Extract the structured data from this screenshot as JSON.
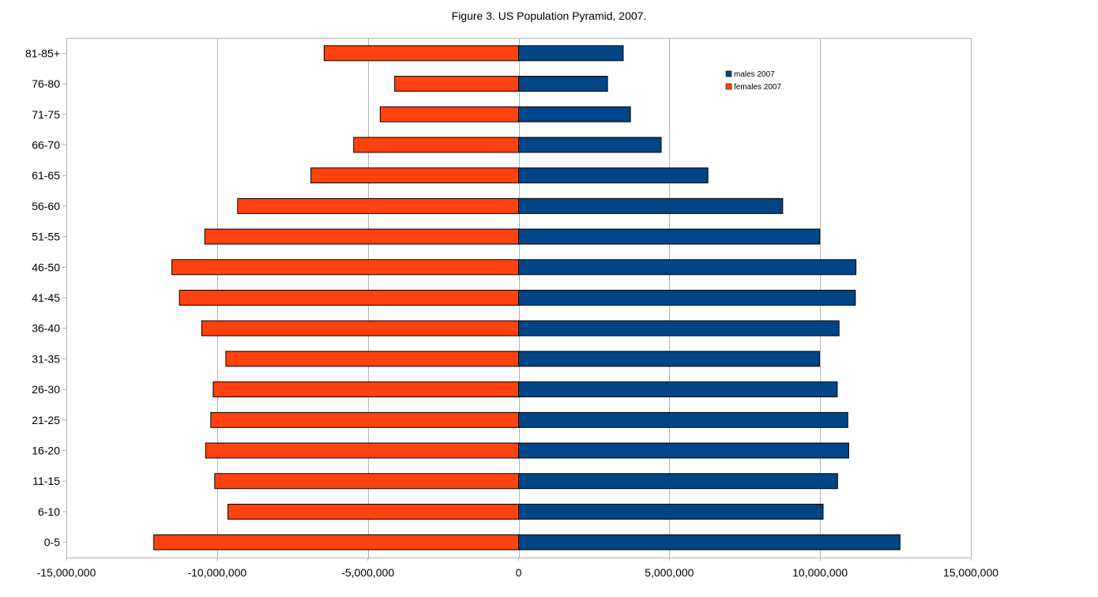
{
  "chart_data": {
    "type": "bar",
    "orientation": "horizontal",
    "title": "Figure 3. US Population Pyramid, 2007.",
    "xlabel": "",
    "ylabel": "",
    "xlim": [
      -15000000,
      15000000
    ],
    "x_ticks": [
      -15000000,
      -10000000,
      -5000000,
      0,
      5000000,
      10000000,
      15000000
    ],
    "x_tick_labels": [
      "-15,000,000",
      "-10,000,000",
      "-5,000,000",
      "0",
      "5,000,000",
      "10,000,000",
      "15,000,000"
    ],
    "grid": "vertical",
    "legend_position": "top-right",
    "categories": [
      "0-5",
      "6-10",
      "11-15",
      "16-20",
      "21-25",
      "26-30",
      "31-35",
      "36-40",
      "41-45",
      "46-50",
      "51-55",
      "56-60",
      "61-65",
      "66-70",
      "71-75",
      "76-80",
      "81-85+"
    ],
    "series": [
      {
        "name": "males 2007",
        "color": "#004586",
        "values": [
          12650000,
          10100000,
          10580000,
          10950000,
          10920000,
          10570000,
          9980000,
          10630000,
          11170000,
          11190000,
          9990000,
          8760000,
          6280000,
          4730000,
          3710000,
          2950000,
          3470000
        ]
      },
      {
        "name": "females 2007",
        "color": "#ff420e",
        "values": [
          -12100000,
          -9640000,
          -10080000,
          -10380000,
          -10210000,
          -10130000,
          -9710000,
          -10510000,
          -11250000,
          -11500000,
          -10410000,
          -9320000,
          -6890000,
          -5470000,
          -4590000,
          -4110000,
          -6450000
        ]
      }
    ]
  }
}
